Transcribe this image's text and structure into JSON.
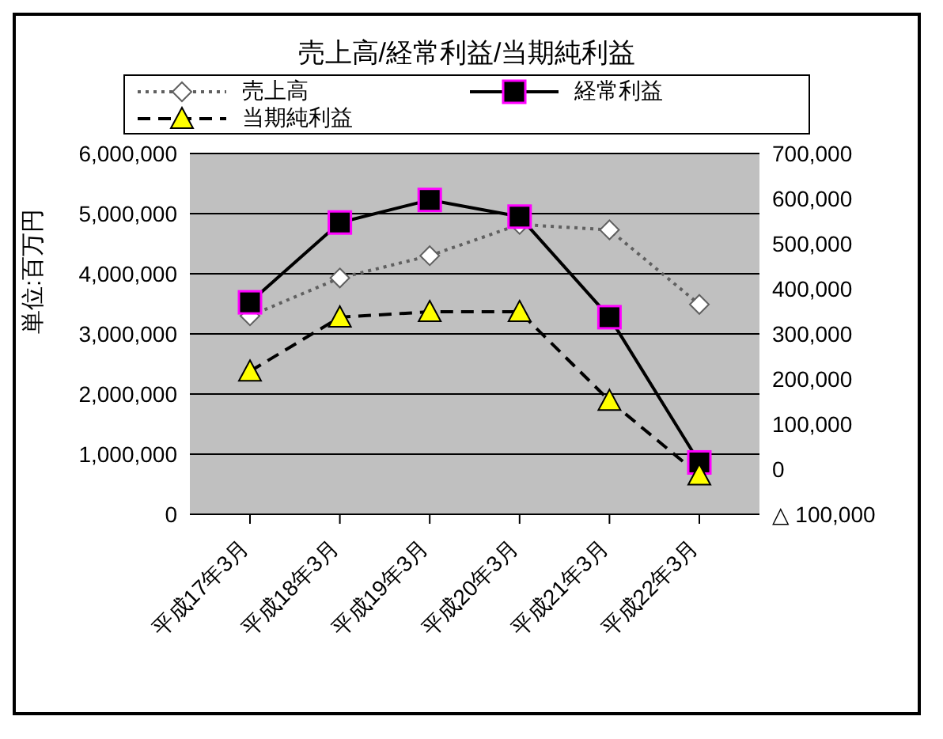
{
  "chart_data": {
    "type": "line",
    "title": "売上高/経常利益/当期純利益",
    "ylabel": "単位:百万円",
    "categories": [
      "平成17年3月",
      "平成18年3月",
      "平成19年3月",
      "平成20年3月",
      "平成21年3月",
      "平成22年3月"
    ],
    "series": [
      {
        "name": "売上高",
        "color": "#606060",
        "marker": "diamond",
        "line_style": "dotted",
        "values": [
          3300000,
          3930000,
          4300000,
          4820000,
          4730000,
          3490000
        ]
      },
      {
        "name": "経常利益",
        "color": "#000000",
        "marker": "square",
        "line_style": "solid",
        "axis": "y2",
        "values": [
          370000,
          547000,
          597000,
          560000,
          337000,
          15000
        ]
      },
      {
        "name": "当期純利益",
        "color": "#000000",
        "marker": "triangle",
        "line_style": "dashed",
        "axis": "y2",
        "values": [
          217000,
          337000,
          349000,
          349000,
          152000,
          -13000
        ]
      }
    ],
    "ylim": [
      0,
      6000000
    ],
    "yticks": [
      0,
      {
        "value": 1000000,
        "label": "1,000,000"
      },
      {
        "value": 2000000,
        "label": "2,000,000"
      },
      {
        "value": 3000000,
        "label": "3,000,000"
      },
      {
        "value": 4000000,
        "label": "4,000,000"
      },
      {
        "value": 5000000,
        "label": "5,000,000"
      },
      {
        "value": 6000000,
        "label": "6,000,000"
      }
    ],
    "y2lim": [
      -100000,
      700000
    ],
    "y2ticks": [
      {
        "value": -100000,
        "label": "△ 100,000"
      },
      0,
      {
        "value": 100000,
        "label": "100,000"
      },
      {
        "value": 200000,
        "label": "200,000"
      },
      {
        "value": 300000,
        "label": "300,000"
      },
      {
        "value": 400000,
        "label": "400,000"
      },
      {
        "value": 500000,
        "label": "500,000"
      },
      {
        "value": 600000,
        "label": "600,000"
      },
      {
        "value": 700000,
        "label": "700,000"
      }
    ],
    "grid": "y",
    "legend": "top"
  }
}
